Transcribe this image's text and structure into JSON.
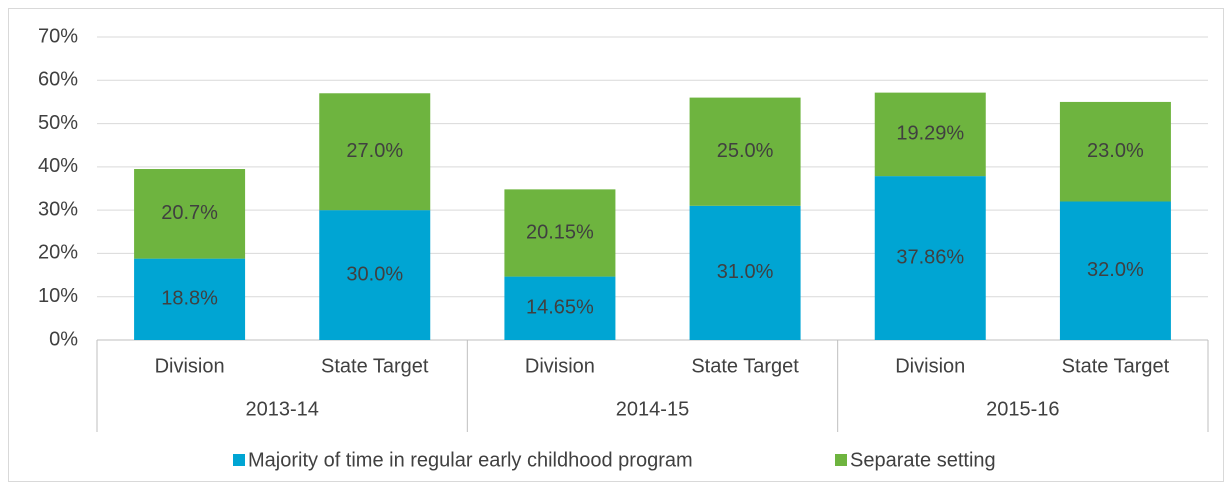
{
  "chart_data": {
    "type": "stacked_bar",
    "categories": [
      "Division",
      "State Target",
      "Division",
      "State Target",
      "Division",
      "State Target"
    ],
    "groups": [
      "2013-14",
      "2014-15",
      "2015-16"
    ],
    "series": [
      {
        "name": "Majority of time in regular early childhood program",
        "color": "#00a5d3",
        "values": [
          18.8,
          30.0,
          14.65,
          31.0,
          37.86,
          32.0
        ],
        "value_labels": [
          "18.8%",
          "30.0%",
          "14.65%",
          "31.0%",
          "37.86%",
          "32.0%"
        ]
      },
      {
        "name": "Separate setting",
        "color": "#6eb43f",
        "values": [
          20.7,
          27.0,
          20.15,
          25.0,
          19.29,
          23.0
        ],
        "value_labels": [
          "20.7%",
          "27.0%",
          "20.15%",
          "25.0%",
          "19.29%",
          "23.0%"
        ]
      }
    ],
    "ylim": [
      0,
      70
    ],
    "yticks": [
      {
        "value": 0,
        "label": "0%"
      },
      {
        "value": 10,
        "label": "10%"
      },
      {
        "value": 20,
        "label": "20%"
      },
      {
        "value": 30,
        "label": "30%"
      },
      {
        "value": 40,
        "label": "40%"
      },
      {
        "value": 50,
        "label": "50%"
      },
      {
        "value": 60,
        "label": "60%"
      },
      {
        "value": 70,
        "label": "70%"
      }
    ],
    "grid": true,
    "legend": "bottom"
  }
}
